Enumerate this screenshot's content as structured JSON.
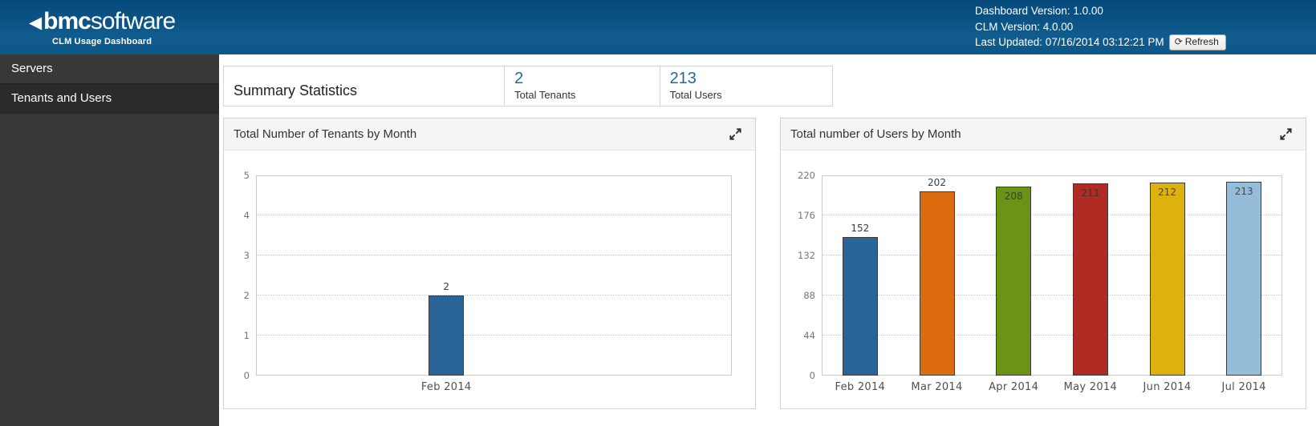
{
  "header": {
    "logo_mark": "◀",
    "logo_bold": "bmc",
    "logo_rest": "software",
    "subtitle": "CLM Usage Dashboard",
    "dashboard_version": "Dashboard Version: 1.0.00",
    "clm_version": "CLM Version: 4.0.00",
    "last_updated": "Last Updated: 07/16/2014 03:12:21 PM",
    "refresh_icon": "⟳",
    "refresh_label": "Refresh"
  },
  "sidebar": {
    "items": [
      {
        "label": "Servers"
      },
      {
        "label": "Tenants and Users"
      }
    ]
  },
  "summary": {
    "title": "Summary Statistics",
    "accent_color": "#24679f",
    "stats": [
      {
        "value": "2",
        "label": "Total Tenants"
      },
      {
        "value": "213",
        "label": "Total Users"
      }
    ]
  },
  "chart_data": [
    {
      "type": "bar",
      "title": "Total Number of Tenants by Month",
      "categories": [
        "Feb 2014"
      ],
      "values": [
        2
      ],
      "bar_colors": [
        "#2a6496"
      ],
      "ylim": [
        0,
        5
      ],
      "yticks": [
        0,
        1,
        2,
        3,
        4,
        5
      ],
      "xlabel": "",
      "ylabel": "",
      "grid": "horizontal dotted",
      "legend": "none",
      "value_labels": "above bar"
    },
    {
      "type": "bar",
      "title": "Total number of Users by Month",
      "categories": [
        "Feb 2014",
        "Mar 2014",
        "Apr 2014",
        "May 2014",
        "Jun 2014",
        "Jul 2014"
      ],
      "values": [
        152,
        202,
        208,
        211,
        212,
        213
      ],
      "bar_colors": [
        "#2a6496",
        "#dd6b10",
        "#6b9416",
        "#b02b24",
        "#ddb20e",
        "#95bdd9"
      ],
      "ylim": [
        0,
        220
      ],
      "yticks": [
        0,
        44,
        88,
        132,
        176,
        220
      ],
      "xlabel": "",
      "ylabel": "",
      "grid": "horizontal dotted",
      "legend": "none",
      "value_labels": "above short bars, inside tall bars"
    }
  ]
}
